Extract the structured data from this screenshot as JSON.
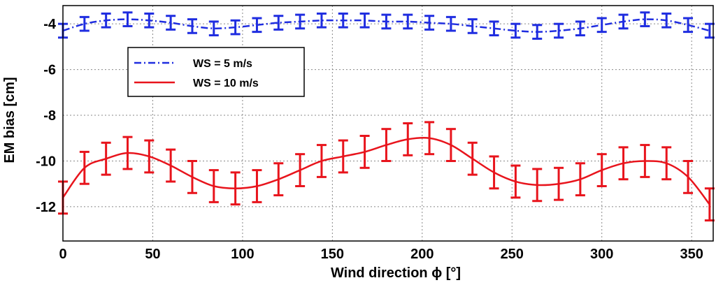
{
  "chart_data": {
    "type": "line",
    "title": "",
    "xlabel": "Wind direction ϕ [°]",
    "ylabel": "EM bias [cm]",
    "xlim": [
      0,
      362
    ],
    "ylim": [
      -13.5,
      -3.2
    ],
    "xticks": [
      0,
      50,
      100,
      150,
      200,
      250,
      300,
      350
    ],
    "yticks": [
      -12,
      -10,
      -8,
      -6,
      -4
    ],
    "grid": true,
    "legend_position": "upper-left",
    "series": [
      {
        "name": "WS = 5 m/s",
        "color": "#1f2de0",
        "line_style": "dash-dot",
        "x": [
          0,
          12,
          24,
          36,
          48,
          60,
          72,
          84,
          96,
          108,
          120,
          132,
          144,
          156,
          168,
          180,
          192,
          204,
          216,
          228,
          240,
          252,
          264,
          276,
          288,
          300,
          312,
          324,
          336,
          348,
          360
        ],
        "y": [
          -4.3,
          -4.0,
          -3.85,
          -3.8,
          -3.85,
          -3.95,
          -4.1,
          -4.2,
          -4.15,
          -4.05,
          -3.95,
          -3.9,
          -3.85,
          -3.85,
          -3.85,
          -3.9,
          -3.9,
          -3.95,
          -4.0,
          -4.1,
          -4.2,
          -4.3,
          -4.35,
          -4.3,
          -4.2,
          -4.05,
          -3.9,
          -3.8,
          -3.85,
          -4.05,
          -4.3
        ],
        "error": 0.3
      },
      {
        "name": "WS = 10 m/s",
        "color": "#e8141c",
        "line_style": "solid",
        "x": [
          0,
          12,
          24,
          36,
          48,
          60,
          72,
          84,
          96,
          108,
          120,
          132,
          144,
          156,
          168,
          180,
          192,
          204,
          216,
          228,
          240,
          252,
          264,
          276,
          288,
          300,
          312,
          324,
          336,
          348,
          360
        ],
        "y": [
          -11.6,
          -10.3,
          -9.9,
          -9.65,
          -9.8,
          -10.2,
          -10.7,
          -11.1,
          -11.2,
          -11.1,
          -10.8,
          -10.4,
          -10.0,
          -9.8,
          -9.6,
          -9.3,
          -9.05,
          -9.0,
          -9.3,
          -9.9,
          -10.5,
          -10.9,
          -11.05,
          -11.0,
          -10.8,
          -10.4,
          -10.1,
          -10.0,
          -10.1,
          -10.7,
          -11.9
        ],
        "error": 0.7
      }
    ]
  }
}
